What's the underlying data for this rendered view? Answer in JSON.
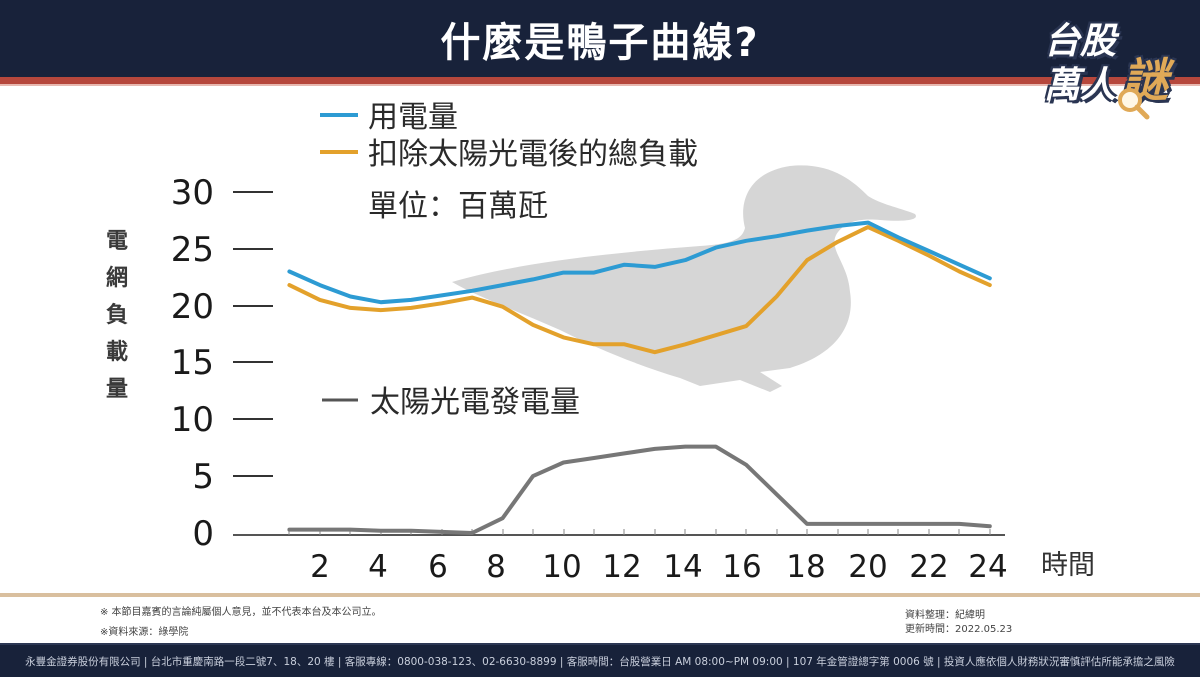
{
  "header": {
    "title": "什麼是鴨子曲線?",
    "logo": {
      "line1": "台股",
      "line2": "萬人",
      "accent": "謎"
    }
  },
  "legend": {
    "usage": "用電量",
    "net_load": "扣除太陽光電後的總負載",
    "unit": "單位：百萬瓩",
    "solar": "太陽光電發電量"
  },
  "axes": {
    "ylabel": "電網負載量",
    "xlabel": "時間",
    "yticks": [
      "30",
      "25",
      "20",
      "15",
      "10",
      "5",
      "0"
    ],
    "xticks": [
      "2",
      "4",
      "6",
      "8",
      "10",
      "12",
      "14",
      "16",
      "18",
      "20",
      "22",
      "24"
    ]
  },
  "colors": {
    "header_bg": "#18223a",
    "stripe": "#b6473c",
    "usage": "#2d9bd3",
    "net_load": "#e3a12b",
    "solar": "#777777",
    "duck": "#d6d6d6"
  },
  "notes": {
    "disclaimer": "※ 本節目嘉賓的言論純屬個人意見，並不代表本台及本公司立。",
    "source": "※資料來源：綠學院",
    "compiled_by": "資料整理：紀緯明",
    "updated": "更新時間：2022.05.23"
  },
  "footer": {
    "text": "永豐金證券股份有限公司 | 台北市重慶南路一段二號7、18、20 樓 | 客服專線：0800-038-123、02-6630-8899 | 客服時間：台股營業日 AM 08:00~PM 09:00 | 107 年金管證總字第 0006 號 | 投資人應依個人財務狀況審慎評估所能承擔之風險"
  },
  "chart_data": {
    "type": "line",
    "title": "什麼是鴨子曲線?",
    "xlabel": "時間",
    "ylabel": "電網負載量",
    "unit": "百萬瓩",
    "xlim": [
      0,
      24
    ],
    "ylim": [
      0,
      30
    ],
    "x_tick_labels": [
      2,
      4,
      6,
      8,
      10,
      12,
      14,
      16,
      18,
      20,
      22,
      24
    ],
    "y_tick_labels": [
      0,
      5,
      10,
      15,
      20,
      25,
      30
    ],
    "grid": false,
    "legend_position": "top-left",
    "annotation": "duck silhouette behind curves",
    "series": [
      {
        "name": "用電量",
        "color": "#2d9bd3",
        "x": [
          1,
          2,
          3,
          4,
          5,
          6,
          7,
          8,
          9,
          10,
          11,
          12,
          13,
          14,
          15,
          16,
          17,
          18,
          19,
          20,
          21,
          22,
          23,
          24
        ],
        "values": [
          23.0,
          21.8,
          20.8,
          20.3,
          20.5,
          20.9,
          21.3,
          21.8,
          22.3,
          22.9,
          22.9,
          23.6,
          23.4,
          24.0,
          25.1,
          25.7,
          26.1,
          26.6,
          27.0,
          27.3,
          26.0,
          24.8,
          23.6,
          22.4
        ]
      },
      {
        "name": "扣除太陽光電後的總負載",
        "color": "#e3a12b",
        "x": [
          1,
          2,
          3,
          4,
          5,
          6,
          7,
          8,
          9,
          10,
          11,
          12,
          13,
          14,
          15,
          16,
          17,
          18,
          19,
          20,
          21,
          22,
          23,
          24
        ],
        "values": [
          21.8,
          20.5,
          19.8,
          19.6,
          19.8,
          20.2,
          20.7,
          19.9,
          18.3,
          17.2,
          16.6,
          16.6,
          15.9,
          16.6,
          17.4,
          18.2,
          20.8,
          24.0,
          25.6,
          26.9,
          25.7,
          24.4,
          23.0,
          21.8
        ]
      },
      {
        "name": "太陽光電發電量",
        "color": "#777777",
        "x": [
          1,
          2,
          3,
          4,
          5,
          6,
          7,
          8,
          9,
          10,
          11,
          12,
          13,
          14,
          15,
          16,
          17,
          18,
          19,
          20,
          21,
          22,
          23,
          24
        ],
        "values": [
          0.3,
          0.3,
          0.3,
          0.2,
          0.2,
          0.1,
          0.0,
          1.3,
          5.0,
          6.2,
          6.6,
          7.0,
          7.4,
          7.6,
          7.6,
          6.0,
          3.4,
          0.8,
          0.8,
          0.8,
          0.8,
          0.8,
          0.8,
          0.6
        ]
      }
    ]
  }
}
